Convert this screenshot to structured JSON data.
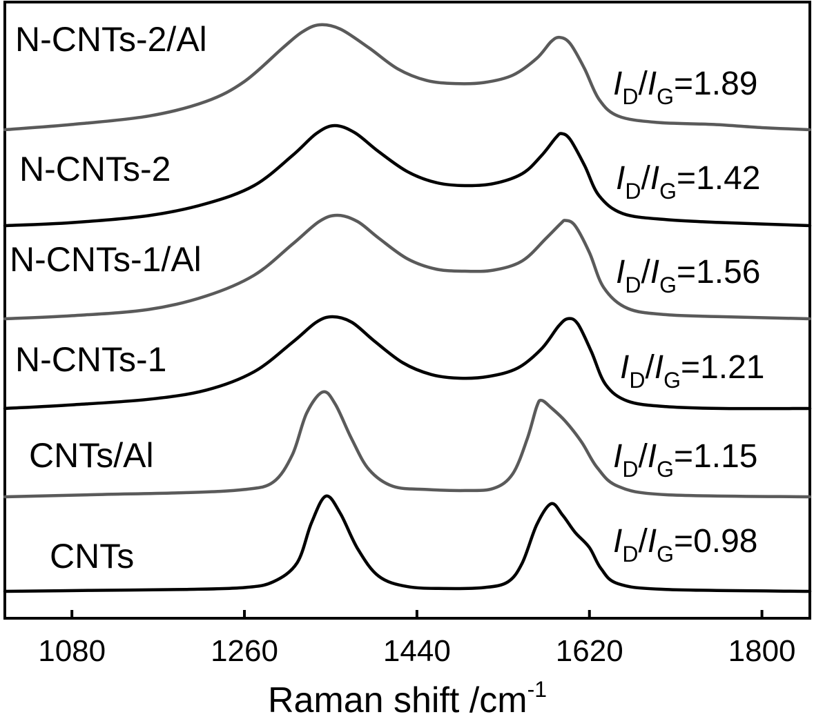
{
  "chart_data": {
    "type": "line",
    "title": "",
    "xlabel": "Raman shift /cm",
    "xlabel_sup": "-1",
    "ylabel": "",
    "xlim": [
      1010,
      1850
    ],
    "xticks": [
      1080,
      1260,
      1440,
      1620,
      1800
    ],
    "xtick_labels": [
      "1080",
      "1260",
      "1440",
      "1620",
      "1800"
    ],
    "stacked": true,
    "grid": false,
    "ratio_prefix": "I",
    "ratio_sub_d": "D",
    "ratio_mid": "/",
    "ratio_sub_g": "G",
    "series": [
      {
        "name": "N-CNTs-2/Al",
        "ratio": "=1.89",
        "color": "#5a5a5a",
        "d_peak": 1338,
        "g_peak": 1589,
        "points": [
          [
            1010,
            0.0
          ],
          [
            1080,
            0.05
          ],
          [
            1160,
            0.13
          ],
          [
            1220,
            0.27
          ],
          [
            1260,
            0.46
          ],
          [
            1300,
            0.78
          ],
          [
            1320,
            0.93
          ],
          [
            1338,
            1.0
          ],
          [
            1360,
            0.96
          ],
          [
            1390,
            0.78
          ],
          [
            1420,
            0.58
          ],
          [
            1450,
            0.47
          ],
          [
            1480,
            0.44
          ],
          [
            1510,
            0.45
          ],
          [
            1540,
            0.52
          ],
          [
            1565,
            0.68
          ],
          [
            1580,
            0.84
          ],
          [
            1589,
            0.88
          ],
          [
            1600,
            0.82
          ],
          [
            1615,
            0.58
          ],
          [
            1630,
            0.29
          ],
          [
            1650,
            0.13
          ],
          [
            1690,
            0.07
          ],
          [
            1750,
            0.05
          ],
          [
            1800,
            0.02
          ],
          [
            1850,
            0.0
          ]
        ]
      },
      {
        "name": "N-CNTs-2",
        "ratio": "=1.42",
        "color": "#000000",
        "d_peak": 1354,
        "g_peak": 1591,
        "points": [
          [
            1010,
            0.0
          ],
          [
            1080,
            0.03
          ],
          [
            1160,
            0.1
          ],
          [
            1220,
            0.22
          ],
          [
            1270,
            0.4
          ],
          [
            1310,
            0.7
          ],
          [
            1335,
            0.92
          ],
          [
            1354,
            1.0
          ],
          [
            1375,
            0.93
          ],
          [
            1400,
            0.74
          ],
          [
            1430,
            0.54
          ],
          [
            1460,
            0.43
          ],
          [
            1490,
            0.4
          ],
          [
            1520,
            0.42
          ],
          [
            1550,
            0.52
          ],
          [
            1570,
            0.7
          ],
          [
            1585,
            0.88
          ],
          [
            1591,
            0.92
          ],
          [
            1600,
            0.86
          ],
          [
            1615,
            0.6
          ],
          [
            1630,
            0.3
          ],
          [
            1655,
            0.12
          ],
          [
            1700,
            0.06
          ],
          [
            1760,
            0.03
          ],
          [
            1850,
            0.0
          ]
        ]
      },
      {
        "name": "N-CNTs-1/Al",
        "ratio": "=1.56",
        "color": "#5a5a5a",
        "d_peak": 1357,
        "g_peak": 1595,
        "points": [
          [
            1010,
            0.0
          ],
          [
            1080,
            0.03
          ],
          [
            1160,
            0.09
          ],
          [
            1220,
            0.22
          ],
          [
            1270,
            0.42
          ],
          [
            1310,
            0.72
          ],
          [
            1338,
            0.94
          ],
          [
            1357,
            1.0
          ],
          [
            1378,
            0.94
          ],
          [
            1400,
            0.78
          ],
          [
            1430,
            0.58
          ],
          [
            1460,
            0.48
          ],
          [
            1490,
            0.46
          ],
          [
            1520,
            0.47
          ],
          [
            1550,
            0.56
          ],
          [
            1575,
            0.78
          ],
          [
            1590,
            0.92
          ],
          [
            1595,
            0.95
          ],
          [
            1605,
            0.9
          ],
          [
            1620,
            0.64
          ],
          [
            1635,
            0.3
          ],
          [
            1660,
            0.1
          ],
          [
            1700,
            0.04
          ],
          [
            1760,
            0.02
          ],
          [
            1850,
            0.0
          ]
        ]
      },
      {
        "name": "N-CNTs-1",
        "ratio": "=1.21",
        "color": "#000000",
        "d_peak": 1352,
        "g_peak": 1598,
        "points": [
          [
            1010,
            0.0
          ],
          [
            1080,
            0.04
          ],
          [
            1160,
            0.1
          ],
          [
            1220,
            0.2
          ],
          [
            1270,
            0.4
          ],
          [
            1310,
            0.72
          ],
          [
            1335,
            0.94
          ],
          [
            1352,
            1.0
          ],
          [
            1372,
            0.94
          ],
          [
            1395,
            0.74
          ],
          [
            1425,
            0.5
          ],
          [
            1455,
            0.37
          ],
          [
            1485,
            0.33
          ],
          [
            1515,
            0.35
          ],
          [
            1545,
            0.44
          ],
          [
            1570,
            0.65
          ],
          [
            1588,
            0.9
          ],
          [
            1598,
            0.98
          ],
          [
            1608,
            0.92
          ],
          [
            1622,
            0.62
          ],
          [
            1637,
            0.26
          ],
          [
            1660,
            0.08
          ],
          [
            1700,
            0.02
          ],
          [
            1760,
            0.0
          ],
          [
            1850,
            0.0
          ]
        ]
      },
      {
        "name": "CNTs/Al",
        "ratio": "=1.15",
        "color": "#5a5a5a",
        "d_peak": 1342,
        "g_peak": 1570,
        "points": [
          [
            1010,
            0.0
          ],
          [
            1100,
            0.02
          ],
          [
            1200,
            0.04
          ],
          [
            1260,
            0.07
          ],
          [
            1290,
            0.14
          ],
          [
            1310,
            0.4
          ],
          [
            1325,
            0.8
          ],
          [
            1342,
            1.0
          ],
          [
            1355,
            0.88
          ],
          [
            1372,
            0.55
          ],
          [
            1390,
            0.26
          ],
          [
            1415,
            0.1
          ],
          [
            1450,
            0.07
          ],
          [
            1490,
            0.06
          ],
          [
            1520,
            0.08
          ],
          [
            1540,
            0.22
          ],
          [
            1555,
            0.55
          ],
          [
            1565,
            0.86
          ],
          [
            1570,
            0.92
          ],
          [
            1580,
            0.85
          ],
          [
            1595,
            0.72
          ],
          [
            1612,
            0.52
          ],
          [
            1628,
            0.28
          ],
          [
            1650,
            0.1
          ],
          [
            1700,
            0.02
          ],
          [
            1850,
            0.0
          ]
        ]
      },
      {
        "name": "CNTs",
        "ratio": "=0.98",
        "color": "#000000",
        "d_peak": 1345,
        "g_peak": 1580,
        "points": [
          [
            1010,
            0.0
          ],
          [
            1100,
            0.01
          ],
          [
            1200,
            0.02
          ],
          [
            1260,
            0.04
          ],
          [
            1290,
            0.1
          ],
          [
            1315,
            0.3
          ],
          [
            1330,
            0.72
          ],
          [
            1345,
            1.0
          ],
          [
            1360,
            0.82
          ],
          [
            1378,
            0.45
          ],
          [
            1400,
            0.16
          ],
          [
            1430,
            0.05
          ],
          [
            1470,
            0.03
          ],
          [
            1510,
            0.04
          ],
          [
            1535,
            0.1
          ],
          [
            1550,
            0.3
          ],
          [
            1565,
            0.7
          ],
          [
            1580,
            0.92
          ],
          [
            1592,
            0.8
          ],
          [
            1605,
            0.62
          ],
          [
            1620,
            0.46
          ],
          [
            1632,
            0.24
          ],
          [
            1650,
            0.08
          ],
          [
            1700,
            0.02
          ],
          [
            1850,
            0.0
          ]
        ]
      }
    ]
  }
}
